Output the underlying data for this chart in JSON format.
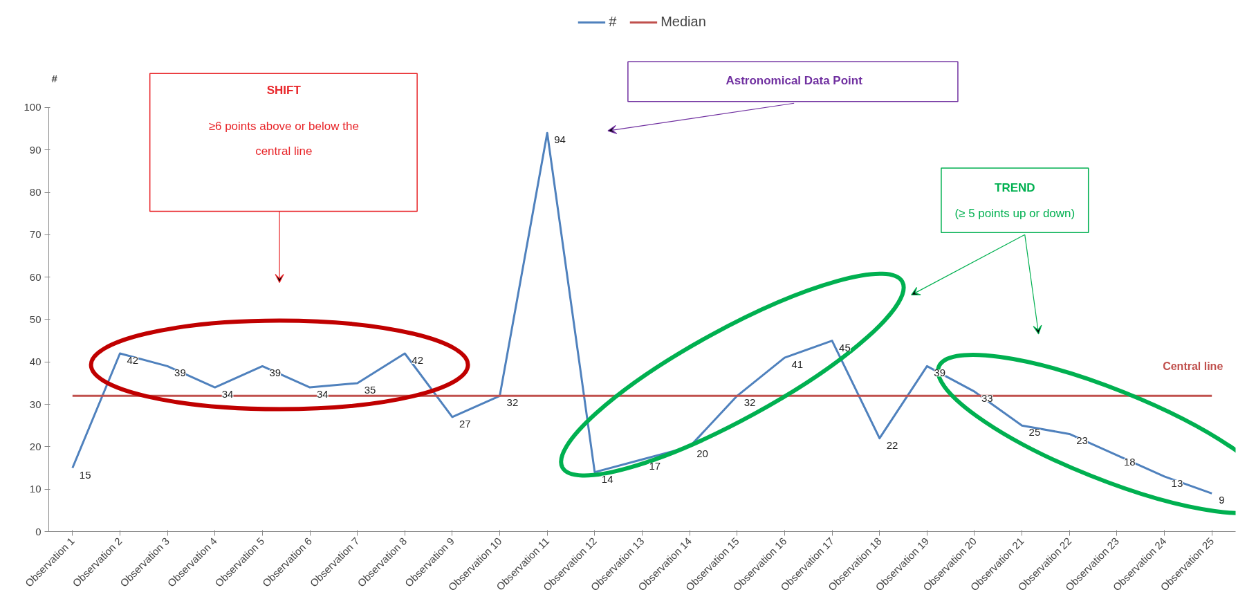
{
  "chart_data": {
    "type": "line",
    "ylabel": "#",
    "categories": [
      "Observation 1",
      "Observation 2",
      "Observation 3",
      "Observation 4",
      "Observation 5",
      "Observation 6",
      "Observation 7",
      "Observation 8",
      "Observation 9",
      "Observation 10",
      "Observation 11",
      "Observation 12",
      "Observation 13",
      "Observation 14",
      "Observation 15",
      "Observation 16",
      "Observation 17",
      "Observation 18",
      "Observation 19",
      "Observation 20",
      "Observation 21",
      "Observation 22",
      "Observation 23",
      "Observation 24",
      "Observation 25"
    ],
    "series": [
      {
        "name": "#",
        "color": "#4f81bd",
        "values": [
          15,
          42,
          39,
          34,
          39,
          34,
          35,
          42,
          27,
          32,
          94,
          14,
          17,
          20,
          32,
          41,
          45,
          22,
          39,
          33,
          25,
          23,
          18,
          13,
          9
        ],
        "value_labels": [
          "15",
          "42",
          "39",
          "34",
          "39",
          "34",
          "35",
          "42",
          "27",
          "32",
          "94",
          "14",
          "17",
          "20",
          "32",
          "41",
          "45",
          "22",
          "39",
          "33",
          "25",
          "23",
          "18",
          "13",
          "9"
        ]
      },
      {
        "name": "Median",
        "color": "#c0504d",
        "values": [
          32,
          32,
          32,
          32,
          32,
          32,
          32,
          32,
          32,
          32,
          32,
          32,
          32,
          32,
          32,
          32,
          32,
          32,
          32,
          32,
          32,
          32,
          32,
          32,
          32
        ]
      }
    ],
    "ylim": [
      0,
      100
    ],
    "yticks": [
      0,
      10,
      20,
      30,
      40,
      50,
      60,
      70,
      80,
      90,
      100
    ],
    "grid": false,
    "legend": "top",
    "marker": "none",
    "line_style": "solid",
    "annotations": [
      "SHIFT",
      "≥6 points above or below the central line",
      "Astronomical Data Point",
      "TREND",
      "(≥ 5 points up or down)",
      "Central line"
    ]
  }
}
